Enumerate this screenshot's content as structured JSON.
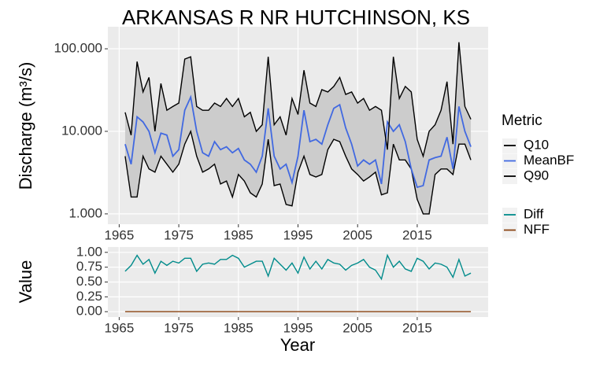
{
  "chart_data": [
    {
      "type": "line",
      "title": "ARKANSAS R NR HUTCHINSON, KS",
      "ylabel": "Discharge (m³/s)",
      "log_scale": true,
      "grid": true,
      "legend_title": "Metric",
      "ribbon_color": "#cccccc",
      "x": [
        1966,
        1967,
        1968,
        1969,
        1970,
        1971,
        1972,
        1973,
        1974,
        1975,
        1976,
        1977,
        1978,
        1979,
        1980,
        1981,
        1982,
        1983,
        1984,
        1985,
        1986,
        1987,
        1988,
        1989,
        1990,
        1991,
        1992,
        1993,
        1994,
        1995,
        1996,
        1997,
        1998,
        1999,
        2000,
        2001,
        2002,
        2003,
        2004,
        2005,
        2006,
        2007,
        2008,
        2009,
        2010,
        2011,
        2012,
        2013,
        2014,
        2015,
        2016,
        2017,
        2018,
        2019,
        2020,
        2021,
        2022,
        2023,
        2024
      ],
      "series": [
        {
          "name": "Q10",
          "color": "#000000",
          "values": [
            5,
            1.6,
            1.6,
            5,
            3.5,
            3.2,
            5,
            4,
            3.2,
            4,
            7,
            10,
            5,
            3.2,
            3.5,
            4,
            2.3,
            2.5,
            1.6,
            3,
            2.5,
            1.8,
            1.6,
            2.3,
            8,
            2.2,
            2.3,
            1.3,
            1.25,
            3.2,
            5,
            3,
            2.8,
            3,
            6,
            8,
            7.5,
            5,
            3.5,
            3,
            2.5,
            2.8,
            3.2,
            1.7,
            1.8,
            7,
            4.5,
            4.5,
            3.5,
            1.5,
            1,
            1,
            3,
            3.5,
            3.5,
            3,
            7,
            7,
            4.5
          ]
        },
        {
          "name": "MeanBF",
          "color": "#4169e1",
          "values": [
            7,
            4,
            15,
            13,
            10,
            5.5,
            9.5,
            9,
            5,
            6,
            18,
            26,
            10,
            5.5,
            5,
            7.5,
            6,
            6.5,
            5.5,
            6.2,
            4.5,
            4,
            3.2,
            5,
            19,
            5,
            3.5,
            4,
            2.4,
            5,
            18,
            7.5,
            8,
            7,
            12,
            19,
            21,
            11,
            7,
            3.8,
            4.5,
            4,
            4.5,
            2.3,
            13,
            10,
            12,
            7.5,
            3.5,
            2.1,
            2.2,
            4.5,
            4.8,
            5,
            8.5,
            3.5,
            20,
            10,
            6.5
          ]
        },
        {
          "name": "Q90",
          "color": "#000000",
          "values": [
            17,
            9,
            70,
            30,
            45,
            10,
            38,
            18,
            20,
            22,
            75,
            80,
            20,
            18,
            18,
            22,
            20,
            25,
            20,
            25,
            15,
            17,
            10,
            12,
            80,
            12,
            15,
            9,
            25,
            16,
            55,
            22,
            20,
            32,
            30,
            35,
            45,
            28,
            30,
            22,
            25,
            18,
            20,
            18,
            6,
            80,
            25,
            35,
            30,
            8,
            5,
            10,
            12,
            18,
            40,
            7,
            120,
            20,
            14
          ]
        }
      ],
      "xlim": [
        1963.1,
        2026.9
      ],
      "xticks": [
        1965,
        1975,
        1985,
        1995,
        2005,
        2015
      ],
      "ylim": [
        0.75,
        185
      ],
      "yticks": [
        {
          "value": 1,
          "label": "1.000"
        },
        {
          "value": 10,
          "label": "10.000"
        },
        {
          "value": 100,
          "label": "100.000"
        }
      ]
    },
    {
      "type": "line",
      "xlabel": "Year",
      "ylabel": "Value",
      "grid": true,
      "x": [
        1966,
        1967,
        1968,
        1969,
        1970,
        1971,
        1972,
        1973,
        1974,
        1975,
        1976,
        1977,
        1978,
        1979,
        1980,
        1981,
        1982,
        1983,
        1984,
        1985,
        1986,
        1987,
        1988,
        1989,
        1990,
        1991,
        1992,
        1993,
        1994,
        1995,
        1996,
        1997,
        1998,
        1999,
        2000,
        2001,
        2002,
        2003,
        2004,
        2005,
        2006,
        2007,
        2008,
        2009,
        2010,
        2011,
        2012,
        2013,
        2014,
        2015,
        2016,
        2017,
        2018,
        2019,
        2020,
        2021,
        2022,
        2023,
        2024
      ],
      "series": [
        {
          "name": "Diff",
          "color": "#008b8b",
          "values": [
            0.68,
            0.78,
            0.95,
            0.8,
            0.88,
            0.65,
            0.85,
            0.78,
            0.85,
            0.82,
            0.9,
            0.9,
            0.68,
            0.8,
            0.82,
            0.8,
            0.88,
            0.88,
            0.95,
            0.9,
            0.75,
            0.8,
            0.85,
            0.85,
            0.6,
            0.9,
            0.8,
            0.7,
            0.82,
            0.65,
            0.92,
            0.72,
            0.85,
            0.72,
            0.88,
            0.82,
            0.8,
            0.7,
            0.78,
            0.82,
            0.88,
            0.75,
            0.7,
            0.55,
            0.95,
            0.75,
            0.85,
            0.72,
            0.68,
            0.9,
            0.85,
            0.72,
            0.82,
            0.8,
            0.75,
            0.58,
            0.88,
            0.6,
            0.65
          ]
        },
        {
          "name": "NFF",
          "color": "#8b4513",
          "values": [
            0,
            0,
            0,
            0,
            0,
            0,
            0,
            0,
            0,
            0,
            0,
            0,
            0,
            0,
            0,
            0,
            0,
            0,
            0,
            0,
            0,
            0,
            0,
            0,
            0,
            0,
            0,
            0,
            0,
            0,
            0,
            0,
            0,
            0,
            0,
            0,
            0,
            0,
            0,
            0,
            0,
            0,
            0,
            0,
            0,
            0,
            0,
            0,
            0,
            0,
            0,
            0,
            0,
            0,
            0,
            0,
            0,
            0,
            0
          ]
        }
      ],
      "xlim": [
        1963.1,
        2026.9
      ],
      "xticks": [
        1965,
        1975,
        1985,
        1995,
        2005,
        2015
      ],
      "ylim": [
        -0.09,
        1.09
      ],
      "yticks": [
        {
          "value": 0,
          "label": "0.00"
        },
        {
          "value": 0.25,
          "label": "0.25"
        },
        {
          "value": 0.5,
          "label": "0.50"
        },
        {
          "value": 0.75,
          "label": "0.75"
        },
        {
          "value": 1,
          "label": "1.00"
        }
      ]
    }
  ]
}
